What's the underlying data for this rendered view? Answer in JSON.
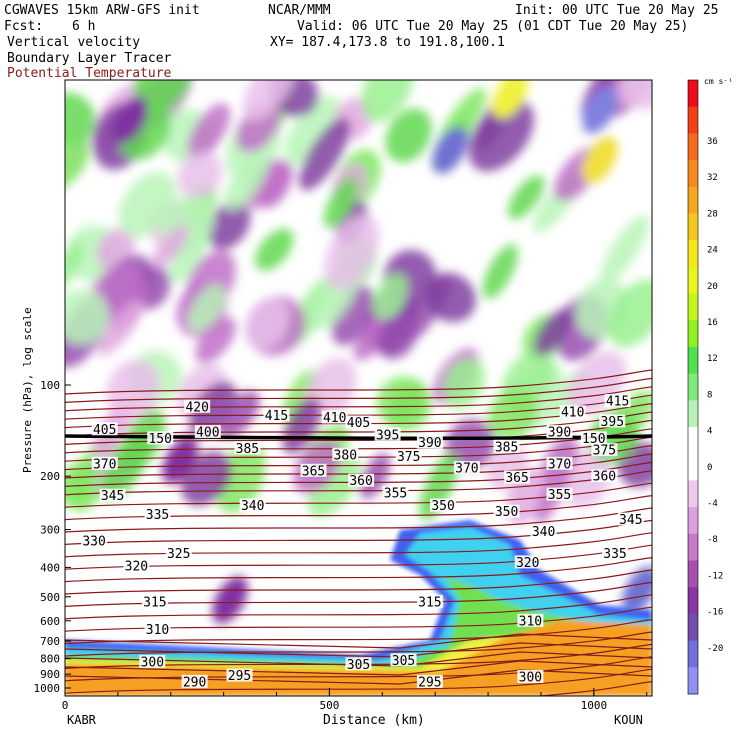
{
  "header": {
    "model": "CGWAVES 15km ARW-GFS init",
    "org": "NCAR/MMM",
    "init": "Init: 00 UTC Tue 20 May 25",
    "fcst_label": "Fcst:",
    "fcst_value": "6 h",
    "valid": "Valid: 06 UTC Tue 20 May 25 (01 CDT Tue 20 May 25)",
    "field1": "Vertical velocity",
    "xy": "XY= 187.4,173.8 to 191.8,100.1",
    "field2": "Boundary Layer Tracer",
    "field3": "Potential Temperature",
    "field3_color": "#8b1a1a"
  },
  "chart_data": {
    "type": "heatmap",
    "xlabel": "Distance (km)",
    "ylabel": "Pressure (hPa), log scale",
    "x_ticks": [
      0,
      500,
      1000
    ],
    "x_range": [
      0,
      1110
    ],
    "y_ticks": [
      100,
      200,
      300,
      400,
      500,
      600,
      700,
      800,
      900,
      1000
    ],
    "y_range": [
      1000,
      10
    ],
    "y_scale": "log",
    "left_station": "KABR",
    "right_station": "KOUN",
    "colorbar": {
      "unit": "cm s⁻¹",
      "ticks": [
        36,
        32,
        28,
        24,
        20,
        16,
        12,
        8,
        4,
        0,
        -4,
        -8,
        -12,
        -16,
        -20
      ],
      "colors": [
        "#e8101a",
        "#f2401a",
        "#f56a1f",
        "#f58a1f",
        "#f5a81f",
        "#f5c81f",
        "#f5e61f",
        "#e8f51f",
        "#c0f51f",
        "#90f020",
        "#50e050",
        "#80ea80",
        "#b8f2b8",
        "#ffffff",
        "#ffffff",
        "#f0c8ee",
        "#e0a0e0",
        "#c878c8",
        "#a850b0",
        "#8838a0",
        "#7050a8",
        "#7070d8",
        "#9090f0"
      ]
    },
    "theta_labels": [
      {
        "v": "420",
        "x": 250,
        "p": 118
      },
      {
        "v": "415",
        "x": 400,
        "p": 126
      },
      {
        "v": "410",
        "x": 510,
        "p": 128
      },
      {
        "v": "405",
        "x": 555,
        "p": 133
      },
      {
        "v": "410",
        "x": 960,
        "p": 123
      },
      {
        "v": "415",
        "x": 1045,
        "p": 113
      },
      {
        "v": "405",
        "x": 75,
        "p": 140
      },
      {
        "v": "400",
        "x": 270,
        "p": 143
      },
      {
        "v": "395",
        "x": 610,
        "p": 146
      },
      {
        "v": "390",
        "x": 690,
        "p": 155
      },
      {
        "v": "390",
        "x": 935,
        "p": 143
      },
      {
        "v": "395",
        "x": 1035,
        "p": 132
      },
      {
        "v": "385",
        "x": 345,
        "p": 162
      },
      {
        "v": "385",
        "x": 835,
        "p": 160
      },
      {
        "v": "380",
        "x": 530,
        "p": 170
      },
      {
        "v": "375",
        "x": 650,
        "p": 172
      },
      {
        "v": "375",
        "x": 1020,
        "p": 164
      },
      {
        "v": "370",
        "x": 75,
        "p": 182
      },
      {
        "v": "370",
        "x": 760,
        "p": 188
      },
      {
        "v": "370",
        "x": 935,
        "p": 182
      },
      {
        "v": "365",
        "x": 470,
        "p": 192
      },
      {
        "v": "365",
        "x": 855,
        "p": 202
      },
      {
        "v": "360",
        "x": 560,
        "p": 207
      },
      {
        "v": "360",
        "x": 1020,
        "p": 200
      },
      {
        "v": "355",
        "x": 625,
        "p": 227
      },
      {
        "v": "355",
        "x": 935,
        "p": 230
      },
      {
        "v": "345",
        "x": 90,
        "p": 232
      },
      {
        "v": "340",
        "x": 355,
        "p": 250
      },
      {
        "v": "350",
        "x": 715,
        "p": 250
      },
      {
        "v": "350",
        "x": 835,
        "p": 262
      },
      {
        "v": "345",
        "x": 1070,
        "p": 278
      },
      {
        "v": "335",
        "x": 175,
        "p": 268
      },
      {
        "v": "340",
        "x": 905,
        "p": 305
      },
      {
        "v": "330",
        "x": 55,
        "p": 327
      },
      {
        "v": "325",
        "x": 215,
        "p": 360
      },
      {
        "v": "320",
        "x": 135,
        "p": 395
      },
      {
        "v": "335",
        "x": 1040,
        "p": 360
      },
      {
        "v": "320",
        "x": 875,
        "p": 385
      },
      {
        "v": "315",
        "x": 170,
        "p": 520
      },
      {
        "v": "315",
        "x": 690,
        "p": 520
      },
      {
        "v": "310",
        "x": 175,
        "p": 640
      },
      {
        "v": "310",
        "x": 880,
        "p": 600
      },
      {
        "v": "305",
        "x": 555,
        "p": 835
      },
      {
        "v": "305",
        "x": 640,
        "p": 810
      },
      {
        "v": "300",
        "x": 165,
        "p": 820
      },
      {
        "v": "300",
        "x": 880,
        "p": 920
      },
      {
        "v": "295",
        "x": 330,
        "p": 910
      },
      {
        "v": "295",
        "x": 690,
        "p": 955
      },
      {
        "v": "290",
        "x": 245,
        "p": 955
      }
    ],
    "tropopause_labels": [
      {
        "v": "150",
        "x": 180,
        "p": 150
      },
      {
        "v": "150",
        "x": 1000,
        "p": 150
      }
    ]
  }
}
